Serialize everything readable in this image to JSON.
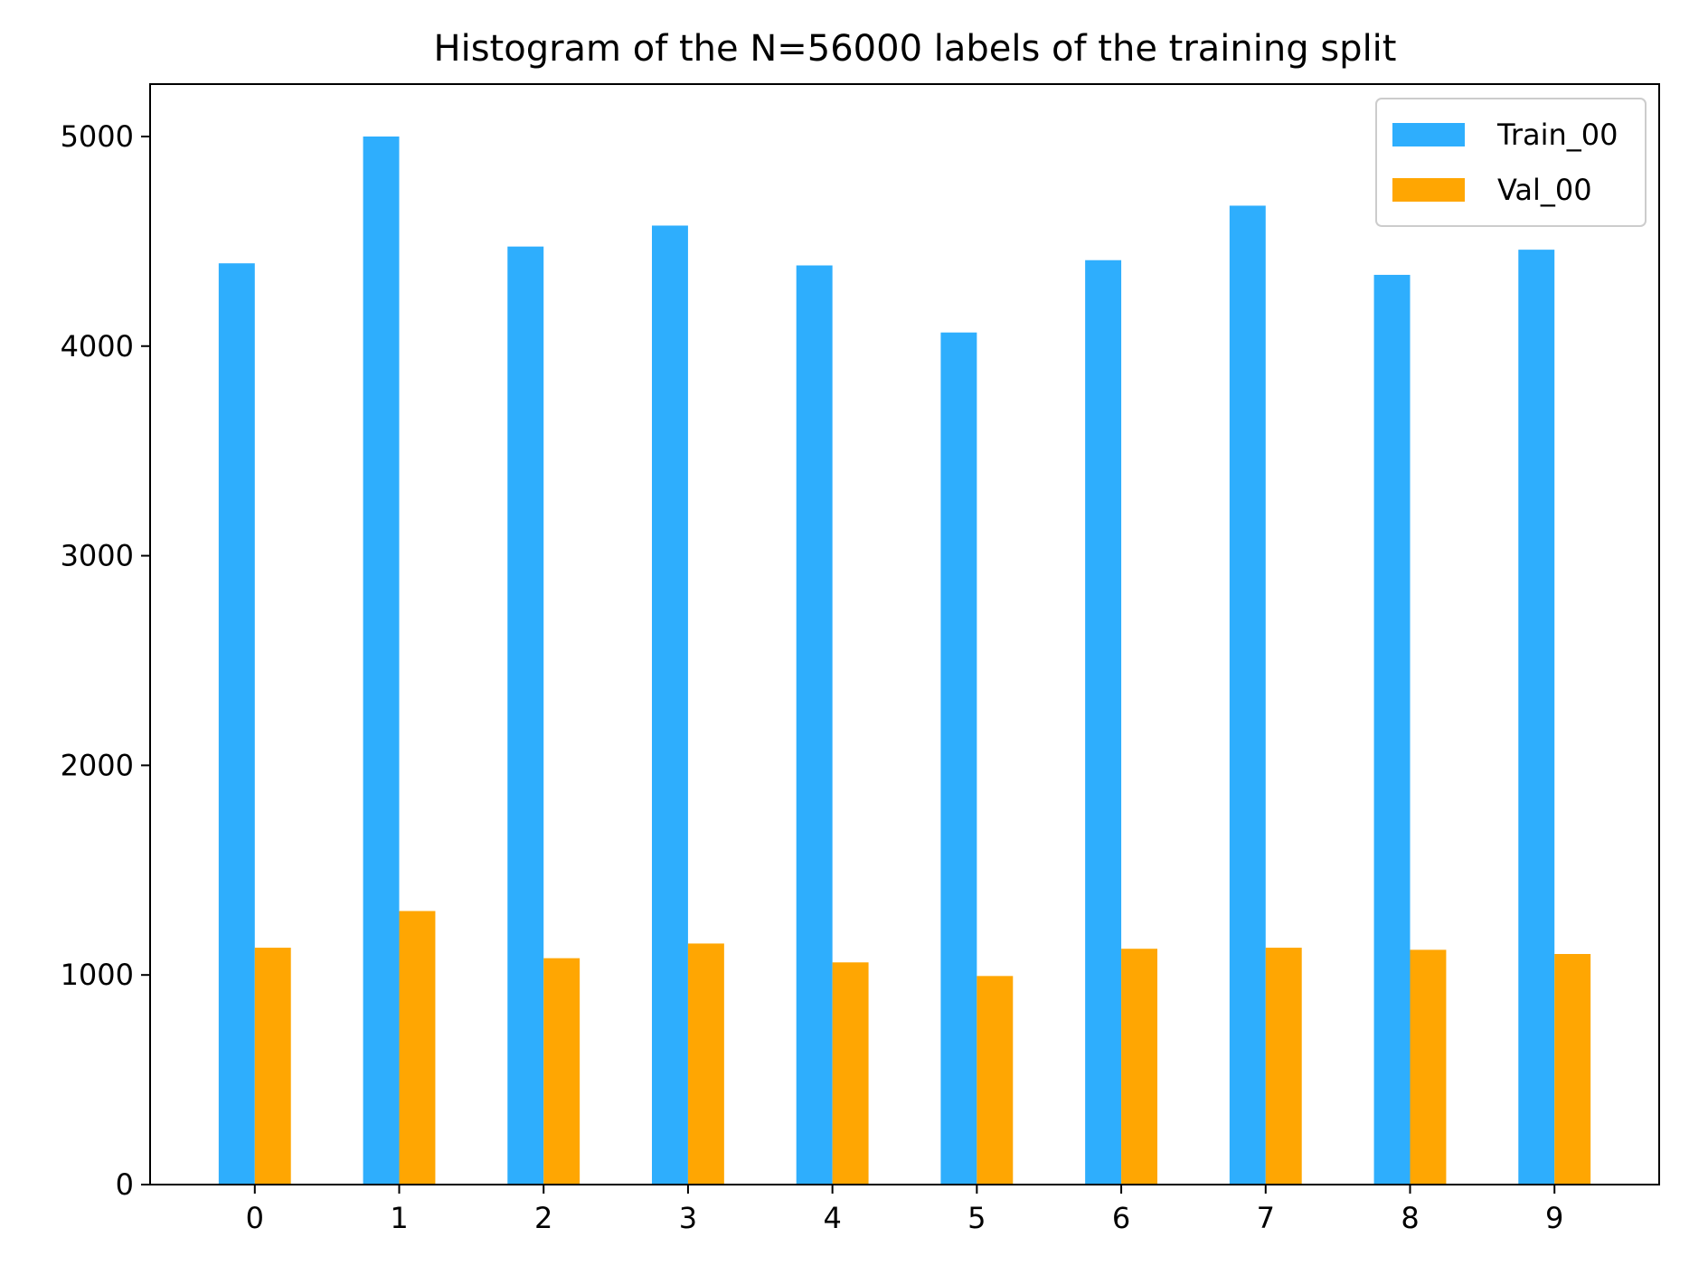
{
  "chart_data": {
    "type": "bar",
    "title": "Histogram of the N=56000 labels of the training split",
    "xlabel": "",
    "ylabel": "",
    "categories": [
      "0",
      "1",
      "2",
      "3",
      "4",
      "5",
      "6",
      "7",
      "8",
      "9"
    ],
    "series": [
      {
        "name": "Train_00",
        "color": "#2eaefd",
        "values": [
          4395,
          5000,
          4475,
          4575,
          4385,
          4065,
          4410,
          4670,
          4340,
          4460
        ]
      },
      {
        "name": "Val_00",
        "color": "#ffa602",
        "values": [
          1130,
          1305,
          1080,
          1150,
          1060,
          995,
          1125,
          1130,
          1120,
          1100
        ]
      }
    ],
    "ylim": [
      0,
      5250
    ],
    "yticks": [
      0,
      1000,
      2000,
      3000,
      4000,
      5000
    ],
    "grid": false,
    "legend_position": "top-right"
  }
}
